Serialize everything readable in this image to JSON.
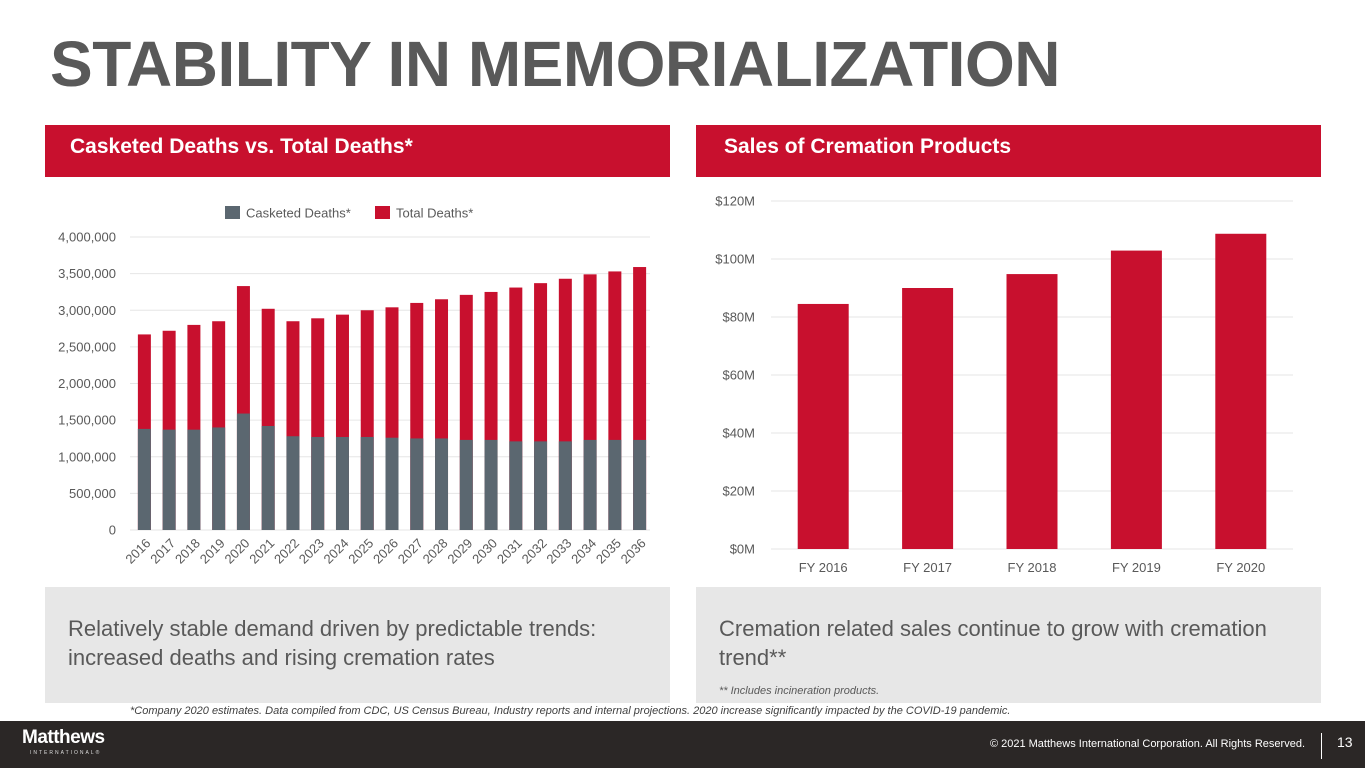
{
  "slide": {
    "title": "STABILITY IN MEMORIALIZATION",
    "page_number": "13"
  },
  "colors": {
    "brand_red": "#c8102e",
    "casketed_gray": "#5b6770",
    "footer_bg": "#2b2726",
    "callout_bg": "#e7e7e7",
    "grid": "#e6e6e6"
  },
  "left_panel": {
    "header": "Casketed Deaths vs. Total Deaths*",
    "callout": "Relatively stable demand driven by predictable trends: increased deaths and rising cremation rates"
  },
  "right_panel": {
    "header": "Sales of Cremation Products",
    "callout": "Cremation related sales continue to grow with cremation trend**",
    "note": "** Includes incineration products."
  },
  "footnote": "*Company 2020 estimates. Data compiled from CDC, US Census Bureau, Industry reports and internal projections.  2020 increase significantly impacted by the COVID-19 pandemic.",
  "footer": {
    "logo_main": "Matthews",
    "logo_sub": "INTERNATIONAL®",
    "copyright": "© 2021 Matthews International Corporation. All Rights Reserved."
  },
  "chart_data": [
    {
      "type": "bar",
      "stacking": "overlay",
      "title": "Casketed Deaths vs. Total Deaths*",
      "xlabel": "",
      "ylabel": "",
      "categories": [
        "2016",
        "2017",
        "2018",
        "2019",
        "2020",
        "2021",
        "2022",
        "2023",
        "2024",
        "2025",
        "2026",
        "2027",
        "2028",
        "2029",
        "2030",
        "2031",
        "2032",
        "2033",
        "2034",
        "2035",
        "2036"
      ],
      "series": [
        {
          "name": "Casketed Deaths*",
          "color": "#5b6770",
          "values": [
            1380000,
            1370000,
            1370000,
            1400000,
            1590000,
            1420000,
            1280000,
            1270000,
            1270000,
            1270000,
            1260000,
            1250000,
            1250000,
            1230000,
            1230000,
            1210000,
            1210000,
            1210000,
            1230000,
            1230000,
            1230000
          ]
        },
        {
          "name": "Total Deaths*",
          "color": "#c8102e",
          "values": [
            2670000,
            2720000,
            2800000,
            2850000,
            3330000,
            3020000,
            2850000,
            2890000,
            2940000,
            3000000,
            3040000,
            3100000,
            3150000,
            3210000,
            3250000,
            3310000,
            3370000,
            3430000,
            3490000,
            3530000,
            3590000
          ]
        }
      ],
      "ylim": [
        0,
        4000000
      ],
      "yticks": [
        0,
        500000,
        1000000,
        1500000,
        2000000,
        2500000,
        3000000,
        3500000,
        4000000
      ],
      "ytick_labels": [
        "0",
        "500,000",
        "1,000,000",
        "1,500,000",
        "2,000,000",
        "2,500,000",
        "3,000,000",
        "3,500,000",
        "4,000,000"
      ],
      "grid": true,
      "legend": "top-center",
      "xtick_rotation": "diagonal"
    },
    {
      "type": "bar",
      "title": "Sales of Cremation Products",
      "xlabel": "",
      "ylabel": "",
      "categories": [
        "FY 2016",
        "FY 2017",
        "FY 2018",
        "FY 2019",
        "FY 2020"
      ],
      "series": [
        {
          "name": "Sales",
          "color": "#c8102e",
          "values": [
            84.5,
            90.0,
            94.8,
            102.9,
            108.7
          ]
        }
      ],
      "units": "$M",
      "ylim": [
        0,
        120
      ],
      "yticks": [
        0,
        20,
        40,
        60,
        80,
        100,
        120
      ],
      "ytick_labels": [
        "$0M",
        "$20M",
        "$40M",
        "$60M",
        "$80M",
        "$100M",
        "$120M"
      ],
      "grid": true,
      "legend": "none"
    }
  ]
}
